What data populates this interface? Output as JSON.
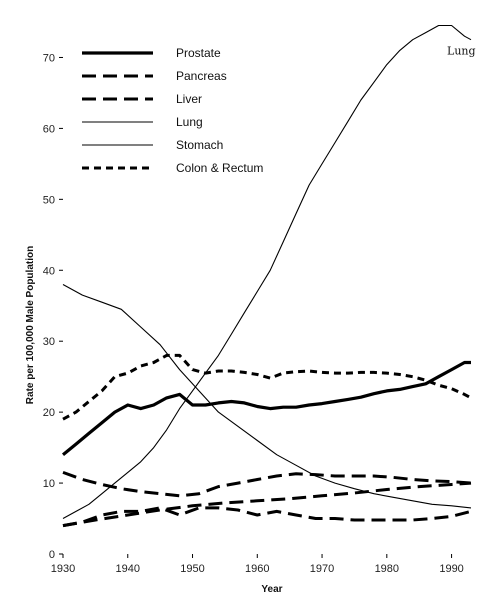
{
  "chart_data": {
    "type": "line",
    "title": "",
    "xlabel": "Year",
    "ylabel": "Rate per 100,000 Male Population",
    "xlim": [
      1930,
      1993
    ],
    "ylim": [
      0,
      75
    ],
    "x_ticks": [
      1930,
      1940,
      1950,
      1960,
      1970,
      1980,
      1990
    ],
    "y_ticks": [
      0,
      10,
      20,
      30,
      40,
      50,
      60,
      70
    ],
    "grid": false,
    "legend_position": "top-left",
    "annotations": [
      {
        "text": "Lung",
        "x": 1991.5,
        "y": 71
      }
    ],
    "series": [
      {
        "name": "Prostate",
        "style": "thick-solid",
        "color": "#000000",
        "x": [
          1930,
          1932,
          1934,
          1936,
          1938,
          1940,
          1942,
          1944,
          1946,
          1948,
          1950,
          1952,
          1954,
          1956,
          1958,
          1960,
          1962,
          1964,
          1966,
          1968,
          1970,
          1972,
          1974,
          1976,
          1978,
          1980,
          1982,
          1984,
          1986,
          1988,
          1990,
          1992,
          1993
        ],
        "y": [
          14,
          15.5,
          17,
          18.5,
          20,
          21,
          20.5,
          21,
          22,
          22.5,
          21,
          21,
          21.3,
          21.5,
          21.3,
          20.8,
          20.5,
          20.7,
          20.7,
          21,
          21.2,
          21.5,
          21.8,
          22.1,
          22.6,
          23,
          23.2,
          23.6,
          24,
          25,
          26,
          27,
          27
        ]
      },
      {
        "name": "Pancreas",
        "style": "long-dash",
        "color": "#000000",
        "x": [
          1930,
          1935,
          1940,
          1945,
          1950,
          1955,
          1960,
          1965,
          1970,
          1975,
          1980,
          1985,
          1990,
          1993
        ],
        "y": [
          4,
          4.8,
          5.5,
          6.2,
          6.8,
          7.2,
          7.5,
          7.8,
          8.2,
          8.6,
          9.1,
          9.5,
          9.8,
          10
        ]
      },
      {
        "name": "Liver",
        "style": "long-dash",
        "color": "#000000",
        "x": [
          1930,
          1933,
          1936,
          1939,
          1942,
          1945,
          1948,
          1951,
          1954,
          1957,
          1960,
          1963,
          1966,
          1969,
          1972,
          1975,
          1978,
          1981,
          1984,
          1987,
          1990,
          1993
        ],
        "y": [
          4,
          4.5,
          5.5,
          6,
          6,
          6.5,
          5.5,
          6.5,
          6.5,
          6.2,
          5.5,
          6,
          5.5,
          5,
          5,
          4.8,
          4.8,
          4.8,
          4.8,
          5,
          5.3,
          6
        ]
      },
      {
        "name": "Lung",
        "style": "thin-solid",
        "color": "#000000",
        "x": [
          1930,
          1932,
          1934,
          1936,
          1938,
          1940,
          1942,
          1944,
          1946,
          1948,
          1950,
          1952,
          1954,
          1956,
          1958,
          1960,
          1962,
          1964,
          1966,
          1968,
          1970,
          1972,
          1974,
          1976,
          1978,
          1980,
          1982,
          1984,
          1986,
          1988,
          1990,
          1992,
          1993
        ],
        "y": [
          5,
          6,
          7,
          8.5,
          10,
          11.5,
          13,
          15,
          17.5,
          20.5,
          23,
          25.5,
          28,
          31,
          34,
          37,
          40,
          44,
          48,
          52,
          55,
          58,
          61,
          64,
          66.5,
          69,
          71,
          72.5,
          73.5,
          74.5,
          74.5,
          73,
          72.5
        ]
      },
      {
        "name": "Stomach",
        "style": "thin-solid",
        "color": "#000000",
        "x": [
          1930,
          1933,
          1936,
          1939,
          1942,
          1945,
          1948,
          1951,
          1954,
          1957,
          1960,
          1963,
          1966,
          1969,
          1972,
          1975,
          1978,
          1981,
          1984,
          1987,
          1990,
          1993
        ],
        "y": [
          38,
          36.5,
          35.5,
          34.5,
          32,
          29.5,
          26,
          23,
          20,
          18,
          16,
          14,
          12.5,
          11,
          10,
          9.2,
          8.5,
          8,
          7.5,
          7,
          6.8,
          6.5
        ]
      },
      {
        "name": "Colon & Rectum",
        "style": "short-dash",
        "color": "#000000",
        "x": [
          1930,
          1932,
          1934,
          1936,
          1938,
          1940,
          1942,
          1944,
          1946,
          1948,
          1950,
          1952,
          1954,
          1956,
          1958,
          1960,
          1962,
          1964,
          1966,
          1968,
          1970,
          1972,
          1974,
          1976,
          1978,
          1980,
          1982,
          1984,
          1986,
          1988,
          1990,
          1992,
          1993
        ],
        "y": [
          19,
          20,
          21.5,
          23,
          25,
          25.5,
          26.5,
          27,
          28,
          28,
          26,
          25.5,
          25.8,
          25.8,
          25.6,
          25.3,
          24.8,
          25.5,
          25.7,
          25.8,
          25.6,
          25.5,
          25.5,
          25.6,
          25.6,
          25.5,
          25.3,
          25,
          24.5,
          23.8,
          23.3,
          22.5,
          22
        ]
      },
      {
        "name": "",
        "style": "long-dash",
        "color": "#000000",
        "x": [
          1930,
          1933,
          1936,
          1939,
          1942,
          1945,
          1948,
          1951,
          1954,
          1957,
          1960,
          1963,
          1966,
          1969,
          1972,
          1975,
          1978,
          1981,
          1984,
          1987,
          1990,
          1993
        ],
        "y": [
          11.5,
          10.5,
          9.8,
          9.2,
          8.8,
          8.5,
          8.2,
          8.5,
          9.5,
          10,
          10.5,
          11,
          11.3,
          11.2,
          11,
          11,
          11,
          10.8,
          10.5,
          10.3,
          10.2,
          10
        ]
      }
    ]
  }
}
